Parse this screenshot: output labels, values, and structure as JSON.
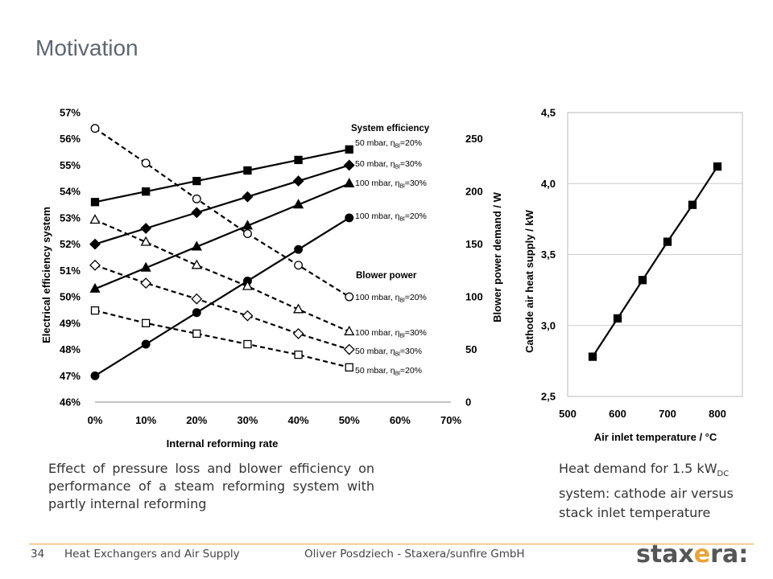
{
  "slide": {
    "title": "Motivation",
    "caption_left": "Effect of pressure loss and blower efficiency on performance of a steam reforming system with partly internal reforming",
    "caption_right_pre": "Heat demand for 1.5 kW",
    "caption_right_sub": "DC",
    "caption_right_post": " system: cathode air versus stack inlet temperature",
    "footer": {
      "page": "34",
      "section": "Heat Exchangers and Air Supply",
      "author": "Oliver Posdziech - Staxera/sunfire GmbH",
      "logo": "staxera:"
    }
  },
  "chart_data": [
    {
      "type": "line",
      "xlabel": "Internal reforming rate",
      "ylabel": "Electrical efficiency system",
      "y2label": "Blower power demand / W",
      "x_ticks": [
        "0%",
        "10%",
        "20%",
        "30%",
        "40%",
        "50%",
        "60%",
        "70%"
      ],
      "y_ticks": [
        "46%",
        "47%",
        "48%",
        "49%",
        "50%",
        "51%",
        "52%",
        "53%",
        "54%",
        "55%",
        "56%",
        "57%"
      ],
      "y2_ticks": [
        "0",
        "50",
        "100",
        "150",
        "200",
        "250"
      ],
      "xlim": [
        0,
        70
      ],
      "ylim": [
        46,
        57
      ],
      "y2lim": [
        0,
        275
      ],
      "group_labels": {
        "efficiency": "System efficiency",
        "blower": "Blower power"
      },
      "x": [
        0,
        10,
        20,
        30,
        40,
        50
      ],
      "series": [
        {
          "axis": "left",
          "style": "solid",
          "marker": "square",
          "fill": "filled",
          "label": {
            "pre": "50 mbar, η",
            "sub": "Bl",
            "post": "=20%"
          },
          "values": [
            53.6,
            54.0,
            54.4,
            54.8,
            55.2,
            55.6
          ]
        },
        {
          "axis": "left",
          "style": "solid",
          "marker": "diamond",
          "fill": "filled",
          "label": {
            "pre": "50 mbar, η",
            "sub": "Bl",
            "post": "=30%"
          },
          "values": [
            52.0,
            52.6,
            53.2,
            53.8,
            54.4,
            55.0
          ]
        },
        {
          "axis": "left",
          "style": "solid",
          "marker": "triangle",
          "fill": "filled",
          "label": {
            "pre": "100 mbar, η",
            "sub": "Bl",
            "post": "=30%"
          },
          "values": [
            50.3,
            51.1,
            51.9,
            52.7,
            53.5,
            54.3
          ]
        },
        {
          "axis": "left",
          "style": "solid",
          "marker": "circle",
          "fill": "filled",
          "label": {
            "pre": "100 mbar, η",
            "sub": "Bl",
            "post": "=20%"
          },
          "values": [
            47.0,
            48.2,
            49.4,
            50.6,
            51.8,
            53.0
          ]
        },
        {
          "axis": "right",
          "style": "dashed",
          "marker": "circle",
          "fill": "open",
          "label": {
            "pre": "100 mbar, η",
            "sub": "Bl",
            "post": "=20%"
          },
          "values": [
            260,
            227,
            193,
            160,
            130,
            100
          ]
        },
        {
          "axis": "right",
          "style": "dashed",
          "marker": "triangle",
          "fill": "open",
          "label": {
            "pre": "100 mbar, η",
            "sub": "Bl",
            "post": "=30%"
          },
          "values": [
            173,
            152,
            130,
            110,
            88,
            67
          ]
        },
        {
          "axis": "right",
          "style": "dashed",
          "marker": "diamond",
          "fill": "open",
          "label": {
            "pre": "50 mbar, η",
            "sub": "Bl",
            "post": "=30%"
          },
          "values": [
            130,
            113,
            98,
            82,
            65,
            50
          ]
        },
        {
          "axis": "right",
          "style": "dashed",
          "marker": "square",
          "fill": "open",
          "label": {
            "pre": "50 mbar, η",
            "sub": "Bl",
            "post": "=20%"
          },
          "values": [
            87,
            75,
            65,
            55,
            45,
            33
          ]
        }
      ]
    },
    {
      "type": "line",
      "xlabel": "Air inlet temperature /  °C",
      "ylabel": "Cathode air heat supply / kW",
      "x_ticks": [
        "500",
        "600",
        "700",
        "800"
      ],
      "y_ticks": [
        "2,5",
        "3,0",
        "3,5",
        "4,0",
        "4,5"
      ],
      "xlim": [
        500,
        850
      ],
      "ylim": [
        2.5,
        4.5
      ],
      "grid": "horizontal",
      "x": [
        550,
        600,
        650,
        700,
        750,
        800
      ],
      "values": [
        2.78,
        3.05,
        3.32,
        3.59,
        3.85,
        4.12
      ]
    }
  ]
}
